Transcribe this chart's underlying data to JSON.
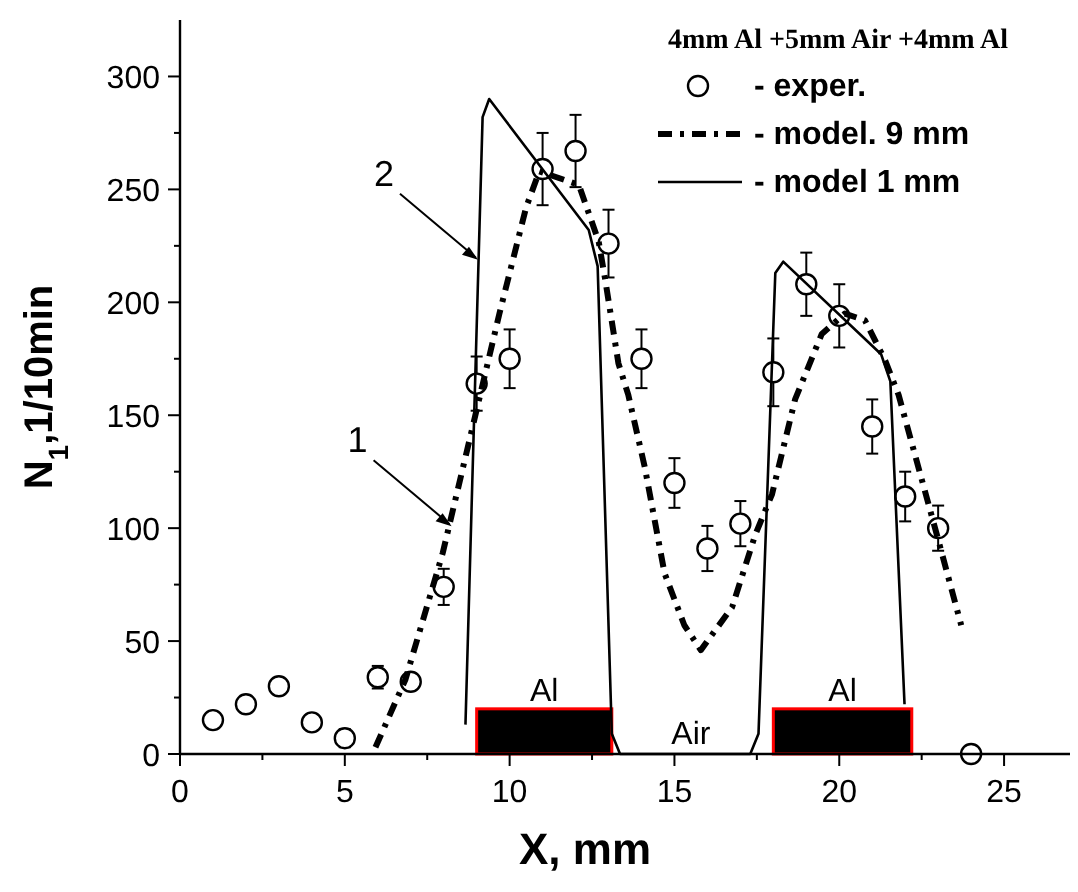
{
  "chart_data": {
    "type": "line",
    "xlabel": "X, mm",
    "ylabel": "N$_{1}$,1/10min",
    "legend_title": "4mm Al +5mm Air +4mm Al",
    "legend": "top right",
    "grid": false,
    "xlim": [
      0,
      27
    ],
    "xticks": [
      0,
      5,
      10,
      15,
      20,
      25
    ],
    "ylim": [
      0,
      325
    ],
    "yticks": [
      0,
      50,
      100,
      150,
      200,
      250,
      300
    ],
    "series": [
      {
        "name": "- exper.",
        "type": "scatter",
        "marker": "circle",
        "color": "#000000",
        "x": [
          1,
          2,
          3,
          4,
          5,
          6,
          7,
          8,
          9,
          10,
          11,
          12,
          13,
          14,
          15,
          16,
          17,
          18,
          19,
          20,
          21,
          22,
          23,
          24
        ],
        "values": [
          15,
          22,
          30,
          14,
          7,
          34,
          32,
          74,
          164,
          175,
          259,
          267,
          226,
          175,
          120,
          91,
          102,
          169,
          208,
          194,
          145,
          114,
          100,
          0
        ],
        "errors": [
          null,
          null,
          null,
          null,
          4,
          5,
          null,
          8,
          12,
          13,
          16,
          16,
          15,
          13,
          11,
          10,
          10,
          15,
          14,
          14,
          12,
          11,
          10,
          null
        ]
      },
      {
        "name": "- model. 9 mm",
        "line_style": "dashed",
        "color": "#000000",
        "x": [
          5.93,
          6.84,
          7.97,
          8.88,
          9.69,
          10.5,
          10.9,
          12.1,
          12.7,
          12.9,
          13.3,
          13.6,
          14.1,
          14.7,
          15.3,
          15.8,
          16.75,
          17.45,
          17.96,
          18.66,
          19.47,
          20.17,
          20.78,
          21.4,
          21.8,
          22.4,
          23.0,
          23.7
        ],
        "values": [
          3,
          33,
          89,
          145,
          195,
          242,
          258,
          252,
          227,
          210,
          173,
          159,
          127,
          80,
          57,
          46,
          65,
          97,
          115,
          157,
          186,
          195,
          192,
          174,
          159,
          127,
          95,
          57
        ]
      },
      {
        "name": "- model 1 mm",
        "line_style": "solid",
        "color": "#000000",
        "x": [
          8.66,
          9.18,
          9.38,
          12.4,
          12.67,
          13.1,
          13.35,
          17.3,
          17.55,
          18.06,
          18.3,
          21.27,
          21.55,
          21.98
        ],
        "values": [
          13,
          282,
          290,
          232,
          216,
          9,
          0,
          0,
          9,
          213,
          218,
          177,
          165,
          22
        ]
      }
    ],
    "bands": [
      {
        "axis": "x",
        "from": 9,
        "to": 13.1,
        "label": "Al",
        "color": "#000000"
      },
      {
        "axis": "x",
        "from": 18,
        "to": 22.2,
        "label": "Al",
        "color": "#000000"
      }
    ],
    "annotations": [
      {
        "text": "Air",
        "x": 15.5,
        "y": 0
      },
      {
        "text": "1",
        "x": 8.3,
        "y": 100
      },
      {
        "text": "2",
        "x": 9.1,
        "y": 218
      }
    ]
  }
}
